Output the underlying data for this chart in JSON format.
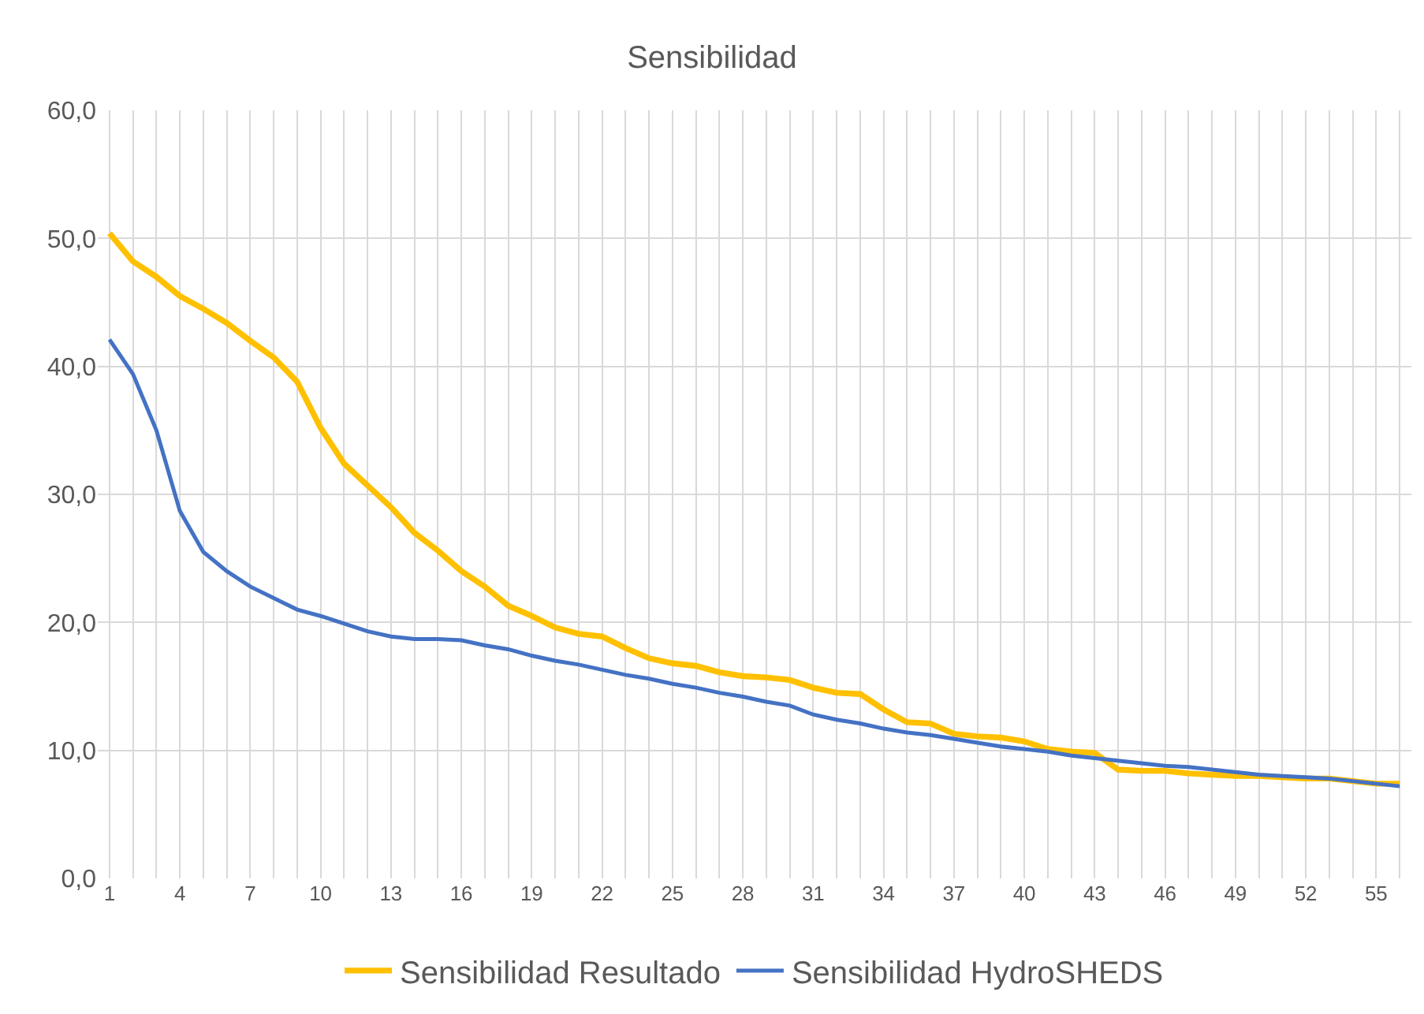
{
  "chart_data": {
    "type": "line",
    "title": "Sensibilidad",
    "categories": [
      "1",
      null,
      null,
      "4",
      null,
      null,
      "7",
      null,
      null,
      "10",
      null,
      null,
      "13",
      null,
      null,
      "16",
      null,
      null,
      "19",
      null,
      null,
      "22",
      null,
      null,
      "25",
      null,
      null,
      "28",
      null,
      null,
      "31",
      null,
      null,
      "34",
      null,
      null,
      "37",
      null,
      null,
      "40",
      null,
      null,
      "43",
      null,
      null,
      "46",
      null,
      null,
      "49",
      null,
      null,
      "52",
      null,
      null,
      "55",
      null
    ],
    "series": [
      {
        "name": "Sensibilidad Resultado",
        "color": "#ffc000",
        "values": [
          50.4,
          48.2,
          47.0,
          45.5,
          44.5,
          43.4,
          42.0,
          40.7,
          38.8,
          35.2,
          32.4,
          30.7,
          29.0,
          27.0,
          25.6,
          24.0,
          22.8,
          21.3,
          20.5,
          19.6,
          19.1,
          18.9,
          18.0,
          17.2,
          16.8,
          16.6,
          16.1,
          15.8,
          15.7,
          15.5,
          14.9,
          14.5,
          14.4,
          13.2,
          12.2,
          12.1,
          11.3,
          11.1,
          11.0,
          10.7,
          10.1,
          9.9,
          9.8,
          8.5,
          8.4,
          8.4,
          8.2,
          8.1,
          8.0,
          8.0,
          7.9,
          7.8,
          7.8,
          7.6,
          7.4,
          7.4
        ]
      },
      {
        "name": "Sensibilidad HydroSHEDS",
        "color": "#4472c4",
        "values": [
          42.1,
          39.4,
          35.0,
          28.7,
          25.5,
          24.0,
          22.8,
          21.9,
          21.0,
          20.5,
          19.9,
          19.3,
          18.9,
          18.7,
          18.7,
          18.6,
          18.2,
          17.9,
          17.4,
          17.0,
          16.7,
          16.3,
          15.9,
          15.6,
          15.2,
          14.9,
          14.5,
          14.2,
          13.8,
          13.5,
          12.8,
          12.4,
          12.1,
          11.7,
          11.4,
          11.2,
          10.9,
          10.6,
          10.3,
          10.1,
          9.9,
          9.6,
          9.4,
          9.2,
          9.0,
          8.8,
          8.7,
          8.5,
          8.3,
          8.1,
          8.0,
          7.9,
          7.8,
          7.6,
          7.4,
          7.2
        ]
      }
    ],
    "ylim": [
      0,
      60
    ],
    "yticks": [
      {
        "value": 0,
        "label": "0,0"
      },
      {
        "value": 10,
        "label": "10,0"
      },
      {
        "value": 20,
        "label": "20,0"
      },
      {
        "value": 30,
        "label": "30,0"
      },
      {
        "value": 40,
        "label": "40,0"
      },
      {
        "value": 50,
        "label": "50,0"
      },
      {
        "value": 60,
        "label": "60,0"
      }
    ],
    "grid": true,
    "legend": "bottom",
    "marker": "none",
    "line_style": "solid"
  }
}
